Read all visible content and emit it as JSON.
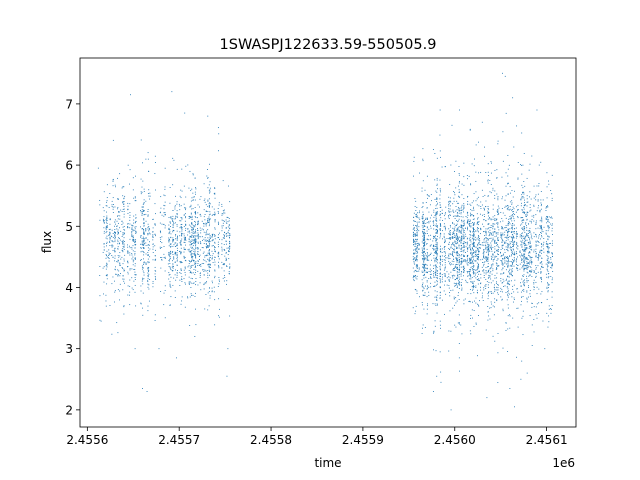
{
  "chart_data": {
    "type": "scatter",
    "title": "1SWASPJ122633.59-550505.9",
    "xlabel": "time",
    "ylabel": "flux",
    "x_offset_label": "1e6",
    "xlim": [
      2455592,
      2456132
    ],
    "ylim": [
      1.72,
      7.75
    ],
    "xticks": [
      2455600,
      2455700,
      2455800,
      2455900,
      2456000,
      2456100
    ],
    "xtick_labels": [
      "2.4556",
      "2.4557",
      "2.4558",
      "2.4559",
      "2.4560",
      "2.4561"
    ],
    "yticks": [
      2,
      3,
      4,
      5,
      6,
      7
    ],
    "ytick_labels": [
      "2",
      "3",
      "4",
      "5",
      "6",
      "7"
    ],
    "grid": false,
    "marker_color": "#1f77b4",
    "series": [
      {
        "segments": [
          {
            "x_range": [
              2455613,
              2455755
            ],
            "y_center": 4.75,
            "y_spread": 0.42,
            "approx_points": 1800
          },
          {
            "x_range": [
              2455955,
              2456107
            ],
            "y_center": 4.65,
            "y_spread": 0.48,
            "approx_points": 3200
          }
        ],
        "points": [
          {
            "x": 2455612,
            "y": 5.95
          },
          {
            "x": 2455615,
            "y": 3.45
          },
          {
            "x": 2455647,
            "y": 7.15
          },
          {
            "x": 2455652,
            "y": 3.0
          },
          {
            "x": 2455660,
            "y": 2.35
          },
          {
            "x": 2455665,
            "y": 2.3
          },
          {
            "x": 2455678,
            "y": 3.0
          },
          {
            "x": 2455692,
            "y": 7.2
          },
          {
            "x": 2455697,
            "y": 2.85
          },
          {
            "x": 2455706,
            "y": 6.85
          },
          {
            "x": 2455717,
            "y": 3.2
          },
          {
            "x": 2455752,
            "y": 2.55
          },
          {
            "x": 2455753,
            "y": 3.0
          },
          {
            "x": 2455985,
            "y": 2.45
          },
          {
            "x": 2455997,
            "y": 6.65
          },
          {
            "x": 2455996,
            "y": 2.0
          },
          {
            "x": 2456005,
            "y": 2.85
          },
          {
            "x": 2456030,
            "y": 6.7
          },
          {
            "x": 2456035,
            "y": 2.2
          },
          {
            "x": 2456052,
            "y": 7.5
          },
          {
            "x": 2456055,
            "y": 7.45
          },
          {
            "x": 2456060,
            "y": 2.35
          },
          {
            "x": 2456063,
            "y": 7.1
          },
          {
            "x": 2456065,
            "y": 2.05
          },
          {
            "x": 2456072,
            "y": 2.5
          },
          {
            "x": 2456092,
            "y": 6.0
          },
          {
            "x": 2456098,
            "y": 3.0
          }
        ]
      }
    ]
  }
}
